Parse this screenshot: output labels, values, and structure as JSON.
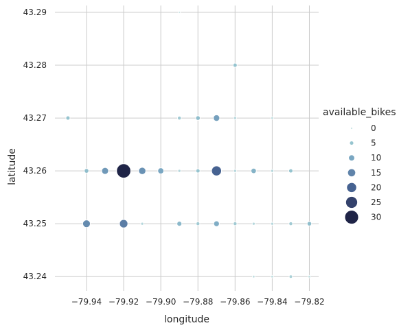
{
  "chart_data": {
    "type": "scatter",
    "title": "",
    "xlabel": "longitude",
    "ylabel": "latitude",
    "xlim": [
      -79.957,
      -79.815
    ],
    "ylim": [
      43.2373,
      43.2913
    ],
    "x_ticks": [
      -79.94,
      -79.92,
      -79.9,
      -79.88,
      -79.86,
      -79.84,
      -79.82
    ],
    "x_tick_labels": [
      "−79.94",
      "−79.92",
      "−79.90",
      "−79.88",
      "−79.86",
      "−79.84",
      "−79.82"
    ],
    "y_ticks": [
      43.24,
      43.25,
      43.26,
      43.27,
      43.28,
      43.29
    ],
    "y_tick_labels": [
      "43.24",
      "43.25",
      "43.26",
      "43.27",
      "43.28",
      "43.29"
    ],
    "grid": true,
    "size_color_variable": "available_bikes",
    "legend": {
      "title": "available_bikes",
      "position": "right",
      "values": [
        0,
        5,
        10,
        15,
        20,
        25,
        30
      ],
      "labels": [
        "0",
        "5",
        "10",
        "15",
        "20",
        "25",
        "30"
      ]
    },
    "points": [
      {
        "x": -79.89,
        "y": 43.29,
        "bikes": 0
      },
      {
        "x": -79.86,
        "y": 43.28,
        "bikes": 5
      },
      {
        "x": -79.95,
        "y": 43.27,
        "bikes": 5
      },
      {
        "x": -79.89,
        "y": 43.27,
        "bikes": 4
      },
      {
        "x": -79.88,
        "y": 43.27,
        "bikes": 6
      },
      {
        "x": -79.87,
        "y": 43.27,
        "bikes": 11
      },
      {
        "x": -79.86,
        "y": 43.27,
        "bikes": 2
      },
      {
        "x": -79.84,
        "y": 43.27,
        "bikes": 1
      },
      {
        "x": -79.94,
        "y": 43.26,
        "bikes": 6
      },
      {
        "x": -79.93,
        "y": 43.26,
        "bikes": 12
      },
      {
        "x": -79.92,
        "y": 43.26,
        "bikes": 31
      },
      {
        "x": -79.91,
        "y": 43.26,
        "bikes": 13
      },
      {
        "x": -79.9,
        "y": 43.26,
        "bikes": 10
      },
      {
        "x": -79.89,
        "y": 43.26,
        "bikes": 2
      },
      {
        "x": -79.88,
        "y": 43.26,
        "bikes": 5
      },
      {
        "x": -79.87,
        "y": 43.26,
        "bikes": 20
      },
      {
        "x": -79.86,
        "y": 43.26,
        "bikes": 2
      },
      {
        "x": -79.85,
        "y": 43.26,
        "bikes": 8
      },
      {
        "x": -79.84,
        "y": 43.26,
        "bikes": 2
      },
      {
        "x": -79.83,
        "y": 43.26,
        "bikes": 5
      },
      {
        "x": -79.94,
        "y": 43.25,
        "bikes": 14
      },
      {
        "x": -79.92,
        "y": 43.25,
        "bikes": 16
      },
      {
        "x": -79.91,
        "y": 43.25,
        "bikes": 2
      },
      {
        "x": -79.89,
        "y": 43.25,
        "bikes": 7
      },
      {
        "x": -79.88,
        "y": 43.25,
        "bikes": 4
      },
      {
        "x": -79.87,
        "y": 43.25,
        "bikes": 9
      },
      {
        "x": -79.86,
        "y": 43.25,
        "bikes": 4
      },
      {
        "x": -79.85,
        "y": 43.25,
        "bikes": 2
      },
      {
        "x": -79.84,
        "y": 43.25,
        "bikes": 2
      },
      {
        "x": -79.83,
        "y": 43.25,
        "bikes": 4
      },
      {
        "x": -79.82,
        "y": 43.25,
        "bikes": 6
      },
      {
        "x": -79.85,
        "y": 43.24,
        "bikes": 1
      },
      {
        "x": -79.84,
        "y": 43.24,
        "bikes": 1
      },
      {
        "x": -79.83,
        "y": 43.24,
        "bikes": 3
      },
      {
        "x": -79.82,
        "y": 43.24,
        "bikes": 1
      }
    ]
  }
}
